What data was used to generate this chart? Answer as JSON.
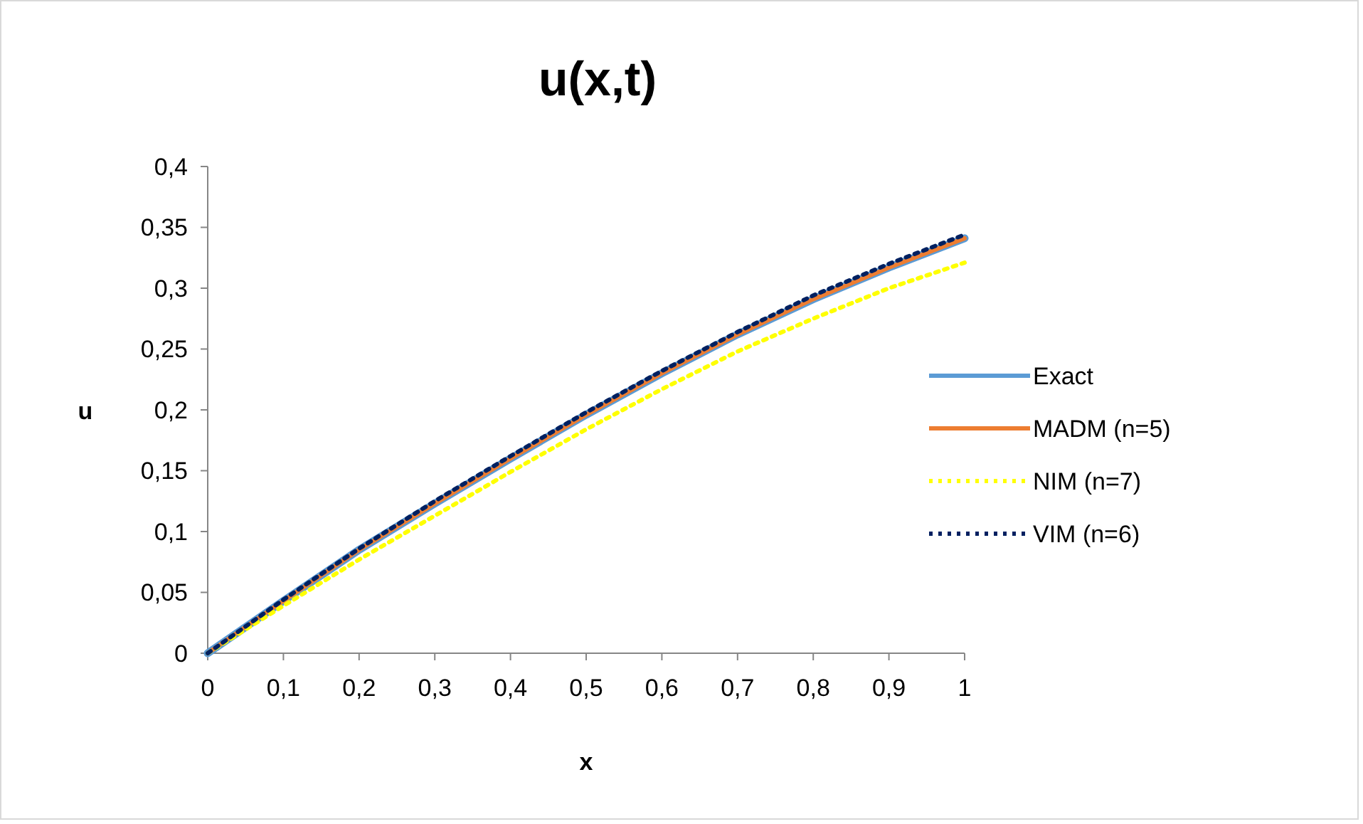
{
  "chart_data": {
    "type": "line",
    "title": "u(x,t)",
    "xlabel": "x",
    "ylabel": "u",
    "x": [
      0,
      0.1,
      0.2,
      0.3,
      0.4,
      0.5,
      0.6,
      0.7,
      0.8,
      0.9,
      1
    ],
    "series": [
      {
        "name": "Exact",
        "color": "#5b9bd5",
        "line_style": "solid",
        "values": [
          0,
          0.043,
          0.085,
          0.123,
          0.16,
          0.196,
          0.23,
          0.262,
          0.291,
          0.317,
          0.341
        ]
      },
      {
        "name": "MADM (n=5)",
        "color": "#ed7d31",
        "line_style": "solid",
        "values": [
          0,
          0.043,
          0.085,
          0.123,
          0.16,
          0.196,
          0.23,
          0.262,
          0.291,
          0.317,
          0.341
        ]
      },
      {
        "name": "NIM (n=7)",
        "color": "#ffff00",
        "line_style": "dotted",
        "values": [
          0,
          0.039,
          0.077,
          0.113,
          0.149,
          0.184,
          0.217,
          0.248,
          0.275,
          0.3,
          0.321
        ]
      },
      {
        "name": "VIM (n=6)",
        "color": "#002060",
        "line_style": "dotted",
        "values": [
          0,
          0.044,
          0.086,
          0.125,
          0.162,
          0.198,
          0.232,
          0.264,
          0.294,
          0.32,
          0.344
        ]
      }
    ],
    "xlim": [
      0,
      1
    ],
    "xticks": [
      {
        "value": 0,
        "label": "0"
      },
      {
        "value": 0.1,
        "label": "0,1"
      },
      {
        "value": 0.2,
        "label": "0,2"
      },
      {
        "value": 0.3,
        "label": "0,3"
      },
      {
        "value": 0.4,
        "label": "0,4"
      },
      {
        "value": 0.5,
        "label": "0,5"
      },
      {
        "value": 0.6,
        "label": "0,6"
      },
      {
        "value": 0.7,
        "label": "0,7"
      },
      {
        "value": 0.8,
        "label": "0,8"
      },
      {
        "value": 0.9,
        "label": "0,9"
      },
      {
        "value": 1,
        "label": "1"
      }
    ],
    "ylim": [
      0,
      0.4
    ],
    "yticks": [
      {
        "value": 0,
        "label": "0"
      },
      {
        "value": 0.05,
        "label": "0,05"
      },
      {
        "value": 0.1,
        "label": "0,1"
      },
      {
        "value": 0.15,
        "label": "0,15"
      },
      {
        "value": 0.2,
        "label": "0,2"
      },
      {
        "value": 0.25,
        "label": "0,25"
      },
      {
        "value": 0.3,
        "label": "0,3"
      },
      {
        "value": 0.35,
        "label": "0,35"
      },
      {
        "value": 0.4,
        "label": "0,4"
      }
    ],
    "grid": false,
    "legend": "right",
    "marker": "none"
  }
}
